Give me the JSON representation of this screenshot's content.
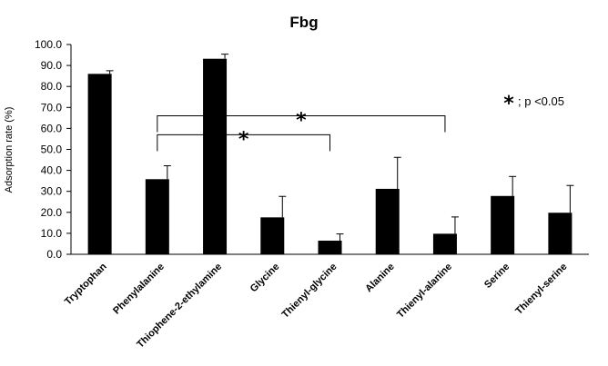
{
  "chart_data": {
    "type": "bar",
    "title": "Fbg",
    "ylabel": "Adsorption rate (%)",
    "xlabel": "",
    "ylim": [
      0,
      100
    ],
    "y_ticks": [
      "0.0",
      "10.0",
      "20.0",
      "30.0",
      "40.0",
      "50.0",
      "60.0",
      "70.0",
      "80.0",
      "90.0",
      "100.0"
    ],
    "categories": [
      "Tryptophan",
      "Phenylalanine",
      "Thiophene-2-ethylamine",
      "Glycine",
      "Thienyl-glycine",
      "Alanine",
      "Thienyl-alanine",
      "Serine",
      "Thienyl-serine"
    ],
    "values": [
      86.0,
      35.8,
      93.2,
      17.6,
      6.5,
      31.2,
      9.8,
      27.8,
      19.8
    ],
    "error_bars": [
      1.5,
      6.4,
      2.2,
      10.0,
      3.2,
      15.0,
      8.0,
      9.3,
      13.0
    ],
    "bar_color": "#000000",
    "grid": false,
    "significance": [
      {
        "from": "Phenylalanine",
        "to": "Thienyl-alanine",
        "y": 66,
        "marker": "*"
      },
      {
        "from": "Phenylalanine",
        "to": "Thienyl-glycine",
        "y": 57,
        "marker": "*"
      }
    ],
    "legend_note": {
      "marker": "*",
      "text": "; p <0.05",
      "position": "top-right"
    }
  }
}
